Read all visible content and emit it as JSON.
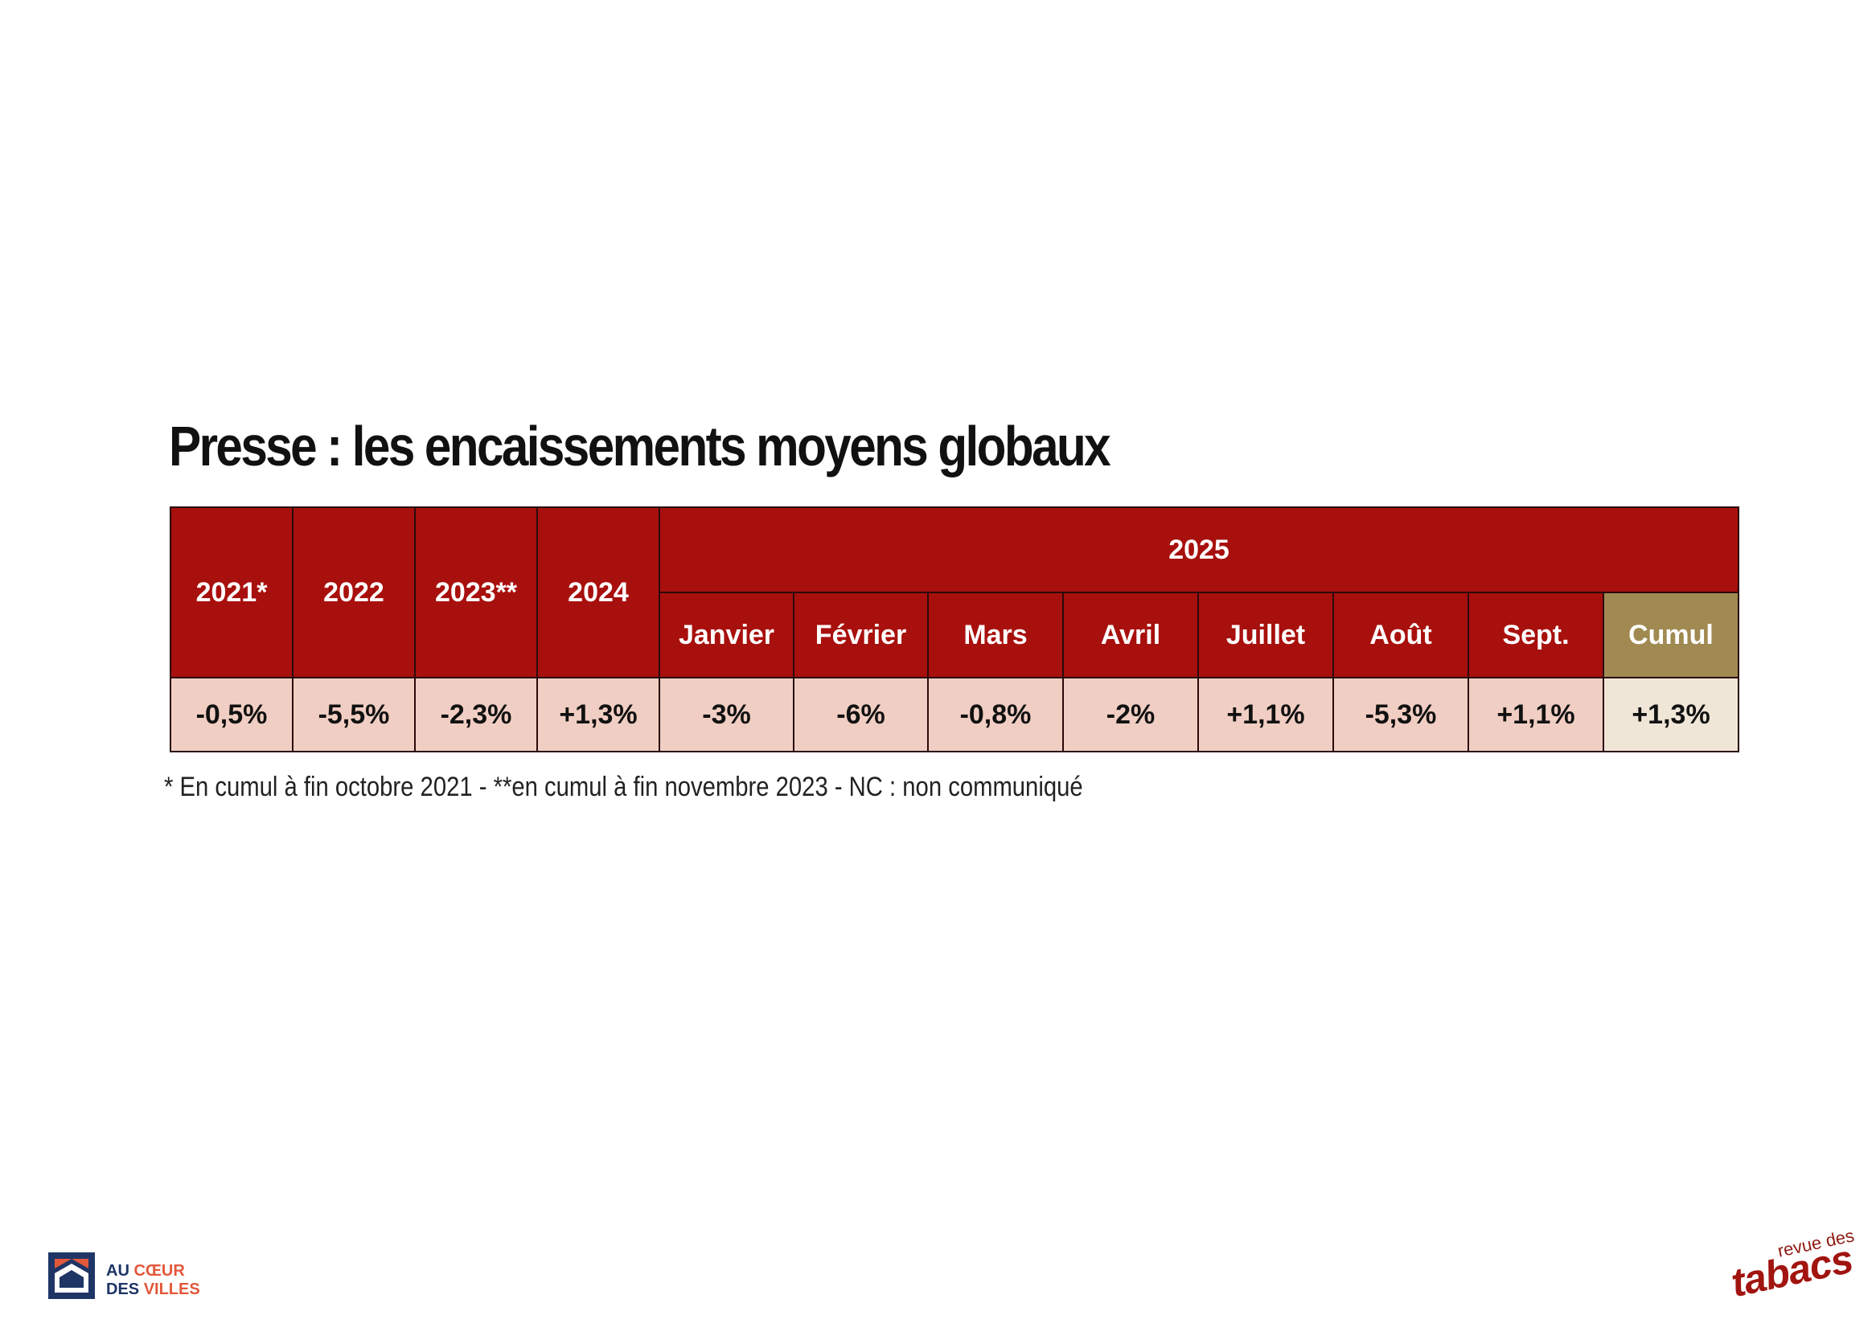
{
  "title": "Presse : les encaissements moyens globaux",
  "table": {
    "year_headers": [
      "2021*",
      "2022",
      "2023**",
      "2024"
    ],
    "group_header": "2025",
    "month_headers": [
      "Janvier",
      "Février",
      "Mars",
      "Avril",
      "Juillet",
      "Août",
      "Sept."
    ],
    "cumul_header": "Cumul",
    "year_values": [
      "-0,5%",
      "-5,5%",
      "-2,3%",
      "+1,3%"
    ],
    "month_values": [
      "-3%",
      "-6%",
      "-0,8%",
      "-2%",
      "+1,1%",
      "-5,3%",
      "+1,1%"
    ],
    "cumul_value": "+1,3%"
  },
  "footnote": "* En cumul à fin octobre 2021 - **en cumul à fin novembre 2023 - NC : non communiqué",
  "logo_left": {
    "line1_a": "AU ",
    "line1_b": "CŒUR",
    "line2_a": "DES ",
    "line2_b": "VILLES"
  },
  "logo_right": {
    "small": "revue des",
    "big": "tabacs"
  },
  "colors": {
    "header_red": "#a8100d",
    "cumul_header": "#a08a52",
    "value_bg": "#f1cec3",
    "cumul_value_bg": "#f0e6d8"
  }
}
